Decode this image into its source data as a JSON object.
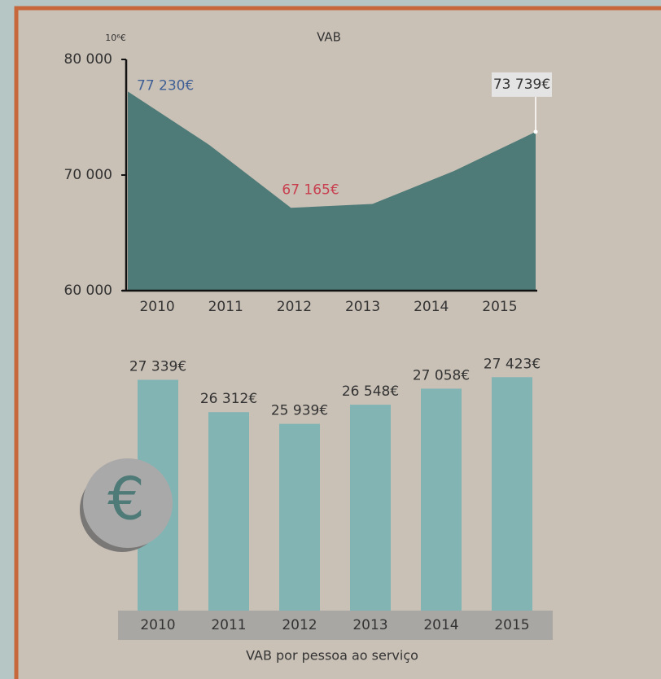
{
  "chart_data": [
    {
      "type": "area",
      "title": "VAB",
      "unit_label": "10⁶€",
      "categories": [
        "2010",
        "2011",
        "2012",
        "2013",
        "2014",
        "2015"
      ],
      "values": [
        77230,
        72600,
        67165,
        67500,
        70350,
        73739
      ],
      "value_labels": [
        "77 230€",
        null,
        "67 165€",
        null,
        null,
        "73 739€"
      ],
      "value_label_colors": [
        "#3f5f95",
        null,
        "#c8404f",
        null,
        null,
        "#333333"
      ],
      "value_label_boxed": [
        false,
        false,
        false,
        false,
        false,
        true
      ],
      "color": "#4e7a77",
      "ylim": [
        60000,
        80000
      ],
      "yticks": [
        {
          "value": 60000,
          "label": "60 000"
        },
        {
          "value": 70000,
          "label": "70 000"
        },
        {
          "value": 80000,
          "label": "80 000"
        }
      ]
    },
    {
      "type": "bar",
      "title": "VAB por pessoa ao serviço",
      "categories": [
        "2010",
        "2011",
        "2012",
        "2013",
        "2014",
        "2015"
      ],
      "values": [
        27339,
        26312,
        25939,
        26548,
        27058,
        27423
      ],
      "value_labels": [
        "27 339€",
        "26 312€",
        "25 939€",
        "26 548€",
        "27 058€",
        "27 423€"
      ],
      "color": "#82b4b4",
      "ylim": [
        20000,
        28000
      ]
    }
  ],
  "icon": "€"
}
